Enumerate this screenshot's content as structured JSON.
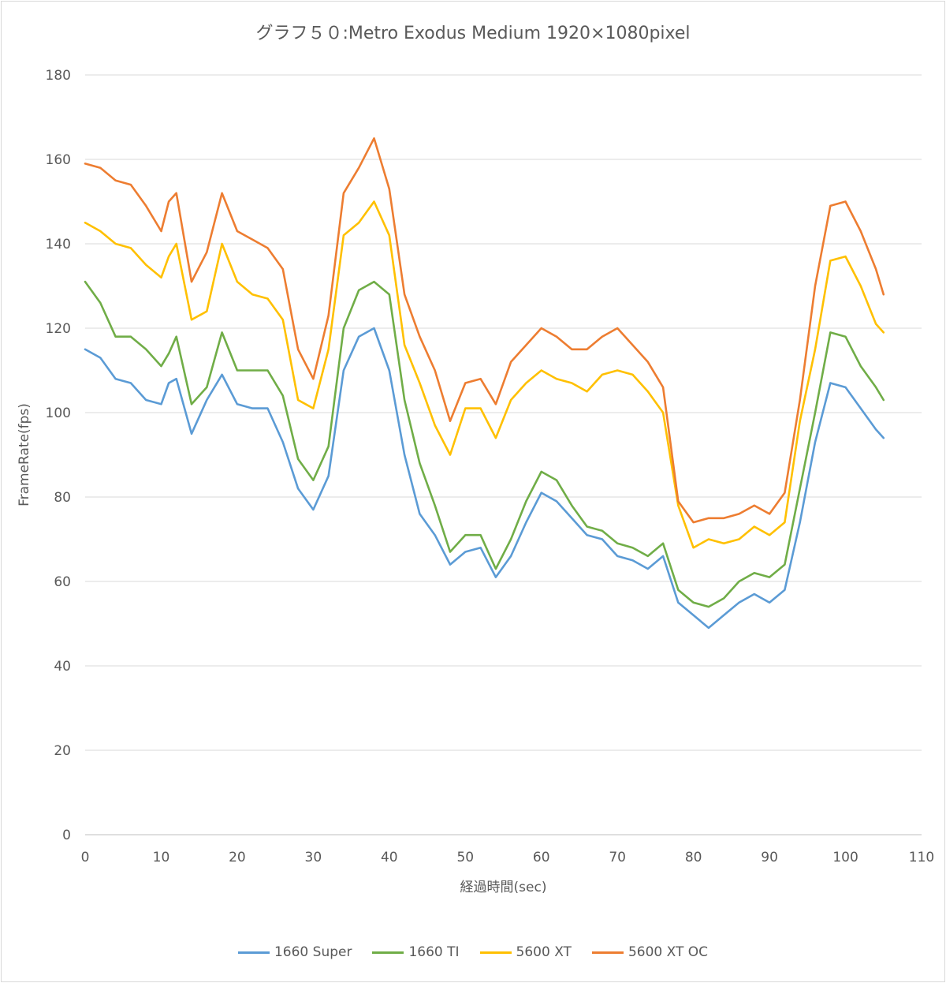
{
  "chart_data": {
    "type": "line",
    "title": "グラフ５０:Metro Exodus Medium 1920×1080pixel",
    "xlabel": "経過時間(sec)",
    "ylabel": "FrameRate(fps)",
    "xlim": [
      0,
      110
    ],
    "ylim": [
      0,
      180
    ],
    "x_ticks": [
      0,
      10,
      20,
      30,
      40,
      50,
      60,
      70,
      80,
      90,
      100,
      110
    ],
    "y_ticks": [
      0,
      20,
      40,
      60,
      80,
      100,
      120,
      140,
      160,
      180
    ],
    "grid": "horizontal",
    "legend_position": "bottom",
    "x": [
      0,
      2,
      4,
      6,
      8,
      10,
      11,
      12,
      14,
      16,
      18,
      20,
      22,
      24,
      26,
      28,
      30,
      32,
      34,
      36,
      38,
      40,
      42,
      44,
      46,
      48,
      50,
      52,
      54,
      56,
      58,
      60,
      62,
      64,
      66,
      68,
      70,
      72,
      74,
      76,
      78,
      80,
      82,
      84,
      86,
      88,
      90,
      92,
      94,
      96,
      98,
      100,
      102,
      104,
      105
    ],
    "series": [
      {
        "name": "1660 Super",
        "color": "#5b9bd5",
        "values": [
          115,
          113,
          108,
          107,
          103,
          102,
          107,
          108,
          95,
          103,
          109,
          102,
          101,
          101,
          93,
          82,
          77,
          85,
          110,
          118,
          120,
          110,
          90,
          76,
          71,
          64,
          67,
          68,
          61,
          66,
          74,
          81,
          79,
          75,
          71,
          70,
          66,
          65,
          63,
          66,
          55,
          52,
          49,
          52,
          55,
          57,
          55,
          58,
          74,
          93,
          107,
          106,
          101,
          96,
          94
        ]
      },
      {
        "name": "1660 TI",
        "color": "#70ad47",
        "values": [
          131,
          126,
          118,
          118,
          115,
          111,
          114,
          118,
          102,
          106,
          119,
          110,
          110,
          110,
          104,
          89,
          84,
          92,
          120,
          129,
          131,
          128,
          103,
          88,
          78,
          67,
          71,
          71,
          63,
          70,
          79,
          86,
          84,
          78,
          73,
          72,
          69,
          68,
          66,
          69,
          58,
          55,
          54,
          56,
          60,
          62,
          61,
          64,
          82,
          100,
          119,
          118,
          111,
          106,
          103
        ]
      },
      {
        "name": "5600 XT",
        "color": "#ffc000",
        "values": [
          145,
          143,
          140,
          139,
          135,
          132,
          137,
          140,
          122,
          124,
          140,
          131,
          128,
          127,
          122,
          103,
          101,
          115,
          142,
          145,
          150,
          142,
          116,
          107,
          97,
          90,
          101,
          101,
          94,
          103,
          107,
          110,
          108,
          107,
          105,
          109,
          110,
          109,
          105,
          100,
          78,
          68,
          70,
          69,
          70,
          73,
          71,
          74,
          98,
          115,
          136,
          137,
          130,
          121,
          119
        ]
      },
      {
        "name": "5600 XT OC",
        "color": "#ed7d31",
        "values": [
          159,
          158,
          155,
          154,
          149,
          143,
          150,
          152,
          131,
          138,
          152,
          143,
          141,
          139,
          134,
          115,
          108,
          123,
          152,
          158,
          165,
          153,
          128,
          118,
          110,
          98,
          107,
          108,
          102,
          112,
          116,
          120,
          118,
          115,
          115,
          118,
          120,
          116,
          112,
          106,
          79,
          74,
          75,
          75,
          76,
          78,
          76,
          81,
          103,
          130,
          149,
          150,
          143,
          134,
          128
        ]
      }
    ]
  }
}
